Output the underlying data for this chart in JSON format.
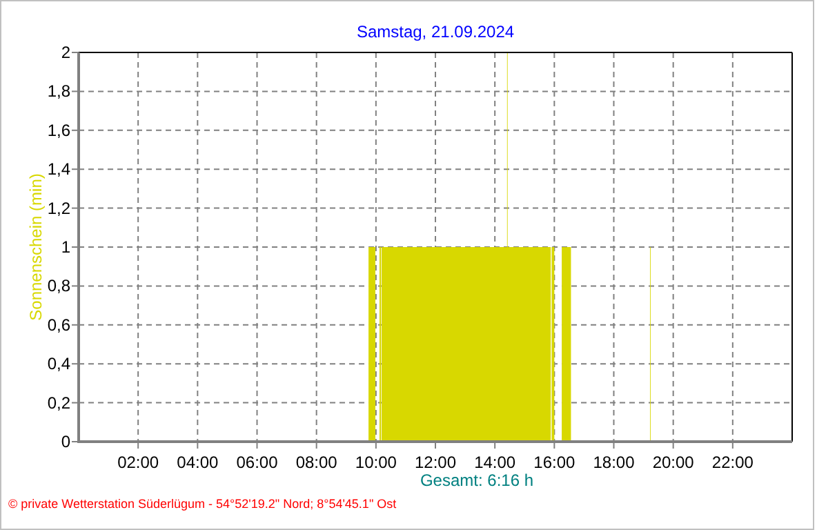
{
  "chart_data": {
    "type": "area",
    "title": "Samstag, 21.09.2024",
    "ylabel": "Sonnenschein (min)",
    "annotations": [
      "Gesamt: 6:16 h",
      "© private Wetterstation Süderlügum - 54°52'19.2\" Nord; 8°54'45.1\" Ost"
    ],
    "series": [
      {
        "color": "#d8d800",
        "x": [
          0,
          9.75,
          9.75,
          9.98,
          9.98,
          10.12,
          10.12,
          10.17,
          10.17,
          10.19,
          10.19,
          14.41,
          14.41,
          14.43,
          14.43,
          15.88,
          15.88,
          15.91,
          15.91,
          16.0,
          16.0,
          16.25,
          16.25,
          16.56,
          16.56,
          19.22,
          19.22,
          19.24,
          19.24,
          24
        ],
        "values": [
          0,
          0,
          1,
          1,
          0,
          0,
          1,
          1,
          0,
          0,
          1,
          1,
          2,
          2,
          1,
          1,
          0,
          0,
          1,
          1,
          0,
          0,
          1,
          1,
          0,
          0,
          1,
          1,
          0,
          0
        ]
      }
    ],
    "xlim": [
      0,
      24
    ],
    "xticks": [
      {
        "value": 2,
        "label": "02:00"
      },
      {
        "value": 4,
        "label": "04:00"
      },
      {
        "value": 6,
        "label": "06:00"
      },
      {
        "value": 8,
        "label": "08:00"
      },
      {
        "value": 10,
        "label": "10:00"
      },
      {
        "value": 12,
        "label": "12:00"
      },
      {
        "value": 14,
        "label": "14:00"
      },
      {
        "value": 16,
        "label": "16:00"
      },
      {
        "value": 18,
        "label": "18:00"
      },
      {
        "value": 20,
        "label": "20:00"
      },
      {
        "value": 22,
        "label": "22:00"
      }
    ],
    "ylim": [
      0,
      2
    ],
    "yticks": [
      0,
      {
        "value": 0.2,
        "label": "0,2"
      },
      {
        "value": 0.4,
        "label": "0,4"
      },
      {
        "value": 0.6,
        "label": "0,6"
      },
      {
        "value": 0.8,
        "label": "0,8"
      },
      1,
      {
        "value": 1.2,
        "label": "1,2"
      },
      {
        "value": 1.4,
        "label": "1,4"
      },
      {
        "value": 1.6,
        "label": "1,6"
      },
      {
        "value": 1.8,
        "label": "1,8"
      },
      2
    ],
    "grid": true
  }
}
